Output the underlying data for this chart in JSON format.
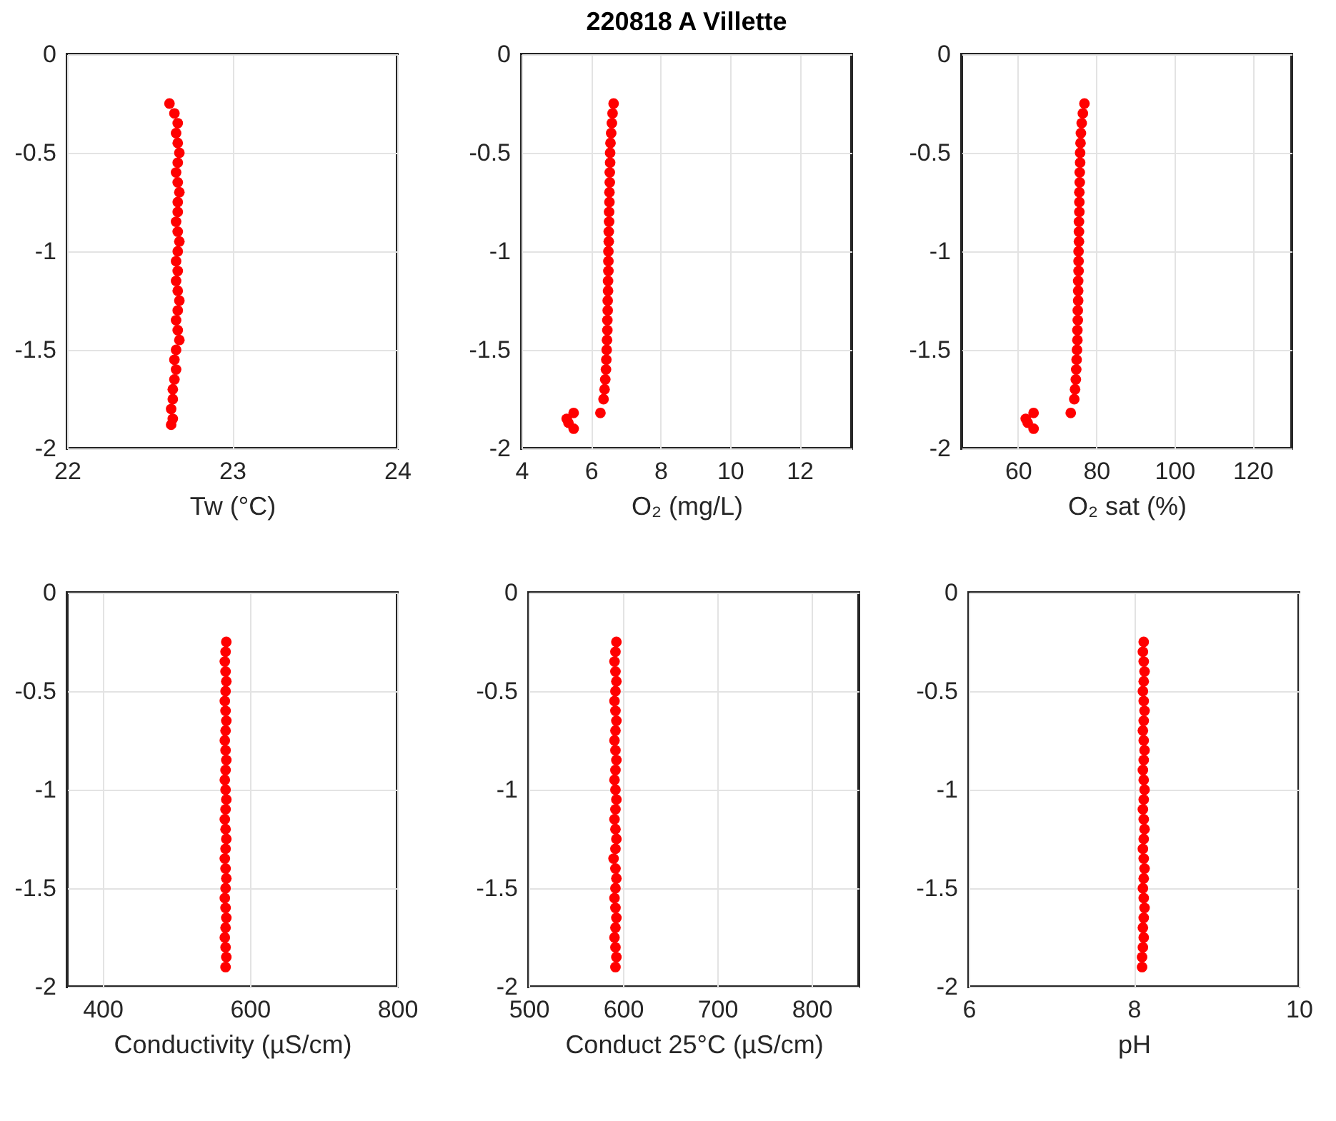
{
  "chart_data": [
    {
      "type": "scatter",
      "xlabel": "Tw (°C)",
      "color": "#ff0000",
      "marker": "circle",
      "grid": true,
      "xlim": [
        22,
        24
      ],
      "xticks": [
        22,
        23,
        24
      ],
      "ylim": [
        -2,
        0
      ],
      "yticks": [
        0,
        -0.5,
        -1,
        -1.5,
        -2
      ],
      "x": [
        22.62,
        22.65,
        22.67,
        22.66,
        22.67,
        22.68,
        22.67,
        22.66,
        22.67,
        22.68,
        22.67,
        22.67,
        22.66,
        22.67,
        22.68,
        22.67,
        22.66,
        22.67,
        22.66,
        22.67,
        22.68,
        22.67,
        22.66,
        22.67,
        22.68,
        22.66,
        22.65,
        22.66,
        22.65,
        22.64,
        22.64,
        22.63,
        22.64,
        22.63
      ],
      "values": [
        -0.25,
        -0.3,
        -0.35,
        -0.4,
        -0.45,
        -0.5,
        -0.55,
        -0.6,
        -0.65,
        -0.7,
        -0.75,
        -0.8,
        -0.85,
        -0.9,
        -0.95,
        -1.0,
        -1.05,
        -1.1,
        -1.15,
        -1.2,
        -1.25,
        -1.3,
        -1.35,
        -1.4,
        -1.45,
        -1.5,
        -1.55,
        -1.6,
        -1.65,
        -1.7,
        -1.75,
        -1.8,
        -1.85,
        -1.88
      ]
    },
    {
      "type": "scatter",
      "title": "220818 A Villette",
      "xlabel": "O₂ (mg/L)",
      "color": "#ff0000",
      "marker": "circle",
      "grid": true,
      "xlim": [
        4,
        13.5
      ],
      "xticks": [
        4,
        6,
        8,
        10,
        12
      ],
      "ylim": [
        -2,
        0
      ],
      "yticks": [
        0,
        -0.5,
        -1,
        -1.5,
        -2
      ],
      "x": [
        6.65,
        6.62,
        6.6,
        6.58,
        6.56,
        6.55,
        6.55,
        6.54,
        6.54,
        6.53,
        6.53,
        6.52,
        6.52,
        6.51,
        6.51,
        6.5,
        6.5,
        6.5,
        6.49,
        6.49,
        6.48,
        6.48,
        6.47,
        6.47,
        6.46,
        6.45,
        6.44,
        6.43,
        6.41,
        6.39,
        6.36,
        6.27,
        5.5,
        5.3,
        5.35,
        5.5
      ],
      "values": [
        -0.25,
        -0.3,
        -0.35,
        -0.4,
        -0.45,
        -0.5,
        -0.55,
        -0.6,
        -0.65,
        -0.7,
        -0.75,
        -0.8,
        -0.85,
        -0.9,
        -0.95,
        -1.0,
        -1.05,
        -1.1,
        -1.15,
        -1.2,
        -1.25,
        -1.3,
        -1.35,
        -1.4,
        -1.45,
        -1.5,
        -1.55,
        -1.6,
        -1.65,
        -1.7,
        -1.75,
        -1.82,
        -1.82,
        -1.85,
        -1.87,
        -1.9
      ]
    },
    {
      "type": "scatter",
      "xlabel": "O₂ sat (%)",
      "color": "#ff0000",
      "marker": "circle",
      "grid": true,
      "xlim": [
        45.6,
        130
      ],
      "xticks": [
        60,
        80,
        100,
        120
      ],
      "ylim": [
        -2,
        0
      ],
      "yticks": [
        0,
        -0.5,
        -1,
        -1.5,
        -2
      ],
      "x": [
        77,
        76.6,
        76.3,
        76.1,
        76,
        75.9,
        75.9,
        75.8,
        75.8,
        75.7,
        75.7,
        75.7,
        75.6,
        75.6,
        75.6,
        75.5,
        75.5,
        75.5,
        75.4,
        75.4,
        75.4,
        75.3,
        75.3,
        75.2,
        75.2,
        75.1,
        75,
        74.9,
        74.8,
        74.6,
        74.4,
        73.5,
        64,
        62,
        62.5,
        64
      ],
      "values": [
        -0.25,
        -0.3,
        -0.35,
        -0.4,
        -0.45,
        -0.5,
        -0.55,
        -0.6,
        -0.65,
        -0.7,
        -0.75,
        -0.8,
        -0.85,
        -0.9,
        -0.95,
        -1.0,
        -1.05,
        -1.1,
        -1.15,
        -1.2,
        -1.25,
        -1.3,
        -1.35,
        -1.4,
        -1.45,
        -1.5,
        -1.55,
        -1.6,
        -1.65,
        -1.7,
        -1.75,
        -1.82,
        -1.82,
        -1.85,
        -1.87,
        -1.9
      ]
    },
    {
      "type": "scatter",
      "xlabel": "Conductivity (µS/cm)",
      "color": "#ff0000",
      "marker": "circle",
      "grid": true,
      "xlim": [
        352,
        800
      ],
      "xticks": [
        400,
        600,
        800
      ],
      "ylim": [
        -2,
        0
      ],
      "yticks": [
        0,
        -0.5,
        -1,
        -1.5,
        -2
      ],
      "x": [
        568,
        567,
        566,
        567,
        568,
        567,
        566,
        567,
        568,
        567,
        566,
        567,
        568,
        567,
        566,
        567,
        568,
        567,
        566,
        567,
        568,
        567,
        566,
        567,
        568,
        567,
        566,
        567,
        568,
        567,
        566,
        567,
        568,
        567
      ],
      "values": [
        -0.25,
        -0.3,
        -0.35,
        -0.4,
        -0.45,
        -0.5,
        -0.55,
        -0.6,
        -0.65,
        -0.7,
        -0.75,
        -0.8,
        -0.85,
        -0.9,
        -0.95,
        -1.0,
        -1.05,
        -1.1,
        -1.15,
        -1.2,
        -1.25,
        -1.3,
        -1.35,
        -1.4,
        -1.45,
        -1.5,
        -1.55,
        -1.6,
        -1.65,
        -1.7,
        -1.75,
        -1.8,
        -1.85,
        -1.9
      ]
    },
    {
      "type": "scatter",
      "xlabel": "Conduct 25°C (µS/cm)",
      "color": "#ff0000",
      "marker": "circle",
      "grid": true,
      "xlim": [
        500,
        850
      ],
      "xticks": [
        500,
        600,
        700,
        800
      ],
      "ylim": [
        -2,
        0
      ],
      "yticks": [
        0,
        -0.5,
        -1,
        -1.5,
        -2
      ],
      "x": [
        593,
        592,
        591,
        592,
        593,
        592,
        591,
        592,
        593,
        592,
        591,
        592,
        593,
        592,
        591,
        592,
        593,
        592,
        591,
        592,
        593,
        592,
        590,
        592,
        593,
        592,
        591,
        592,
        593,
        592,
        591,
        592,
        593,
        592
      ],
      "values": [
        -0.25,
        -0.3,
        -0.35,
        -0.4,
        -0.45,
        -0.5,
        -0.55,
        -0.6,
        -0.65,
        -0.7,
        -0.75,
        -0.8,
        -0.85,
        -0.9,
        -0.95,
        -1.0,
        -1.05,
        -1.1,
        -1.15,
        -1.2,
        -1.25,
        -1.3,
        -1.35,
        -1.4,
        -1.45,
        -1.5,
        -1.55,
        -1.6,
        -1.65,
        -1.7,
        -1.75,
        -1.8,
        -1.85,
        -1.9
      ]
    },
    {
      "type": "scatter",
      "xlabel": "pH",
      "color": "#ff0000",
      "marker": "circle",
      "grid": true,
      "xlim": [
        6,
        10
      ],
      "xticks": [
        6,
        8,
        10
      ],
      "ylim": [
        -2,
        0
      ],
      "yticks": [
        0,
        -0.5,
        -1,
        -1.5,
        -2
      ],
      "x": [
        8.12,
        8.11,
        8.12,
        8.13,
        8.12,
        8.11,
        8.12,
        8.13,
        8.12,
        8.11,
        8.12,
        8.13,
        8.12,
        8.11,
        8.12,
        8.13,
        8.12,
        8.11,
        8.12,
        8.13,
        8.12,
        8.11,
        8.12,
        8.13,
        8.12,
        8.11,
        8.12,
        8.13,
        8.12,
        8.11,
        8.12,
        8.11,
        8.1,
        8.1
      ],
      "values": [
        -0.25,
        -0.3,
        -0.35,
        -0.4,
        -0.45,
        -0.5,
        -0.55,
        -0.6,
        -0.65,
        -0.7,
        -0.75,
        -0.8,
        -0.85,
        -0.9,
        -0.95,
        -1.0,
        -1.05,
        -1.1,
        -1.15,
        -1.2,
        -1.25,
        -1.3,
        -1.35,
        -1.4,
        -1.45,
        -1.5,
        -1.55,
        -1.6,
        -1.65,
        -1.7,
        -1.75,
        -1.8,
        -1.85,
        -1.9
      ]
    }
  ]
}
